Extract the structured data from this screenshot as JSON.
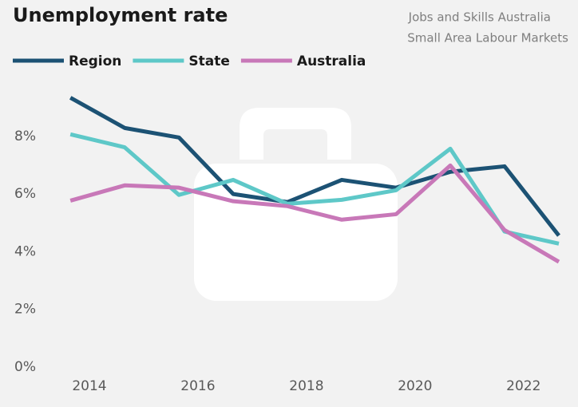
{
  "chart_data": {
    "type": "line",
    "title": "Unemployment rate",
    "subtitle": [
      "Jobs and Skills Australia",
      "Small Area Labour Markets"
    ],
    "x": [
      2013.65,
      2014.65,
      2015.65,
      2016.65,
      2017.65,
      2018.65,
      2019.65,
      2020.65,
      2021.65,
      2022.65
    ],
    "series": [
      {
        "name": "Region",
        "color": "#1c5274",
        "values": [
          9.34,
          8.29,
          7.96,
          6.0,
          5.72,
          6.49,
          6.22,
          6.77,
          6.96,
          4.56
        ]
      },
      {
        "name": "State",
        "color": "#5ec8c8",
        "values": [
          8.07,
          7.62,
          5.97,
          6.49,
          5.66,
          5.8,
          6.13,
          7.57,
          4.7,
          4.28
        ]
      },
      {
        "name": "Australia",
        "color": "#c878b8",
        "values": [
          5.77,
          6.3,
          6.22,
          5.75,
          5.58,
          5.11,
          5.3,
          6.99,
          4.75,
          3.65
        ]
      }
    ],
    "xlim": [
      2013,
      2022.9
    ],
    "xticks": [
      2014,
      2016,
      2018,
      2020,
      2022
    ],
    "ylim": [
      0,
      9.6
    ],
    "yticks": [
      {
        "value": 0,
        "label": "0%"
      },
      {
        "value": 2,
        "label": "2%"
      },
      {
        "value": 4,
        "label": "4%"
      },
      {
        "value": 6,
        "label": "6%"
      },
      {
        "value": 8,
        "label": "8%"
      }
    ],
    "legend": "top-left"
  }
}
